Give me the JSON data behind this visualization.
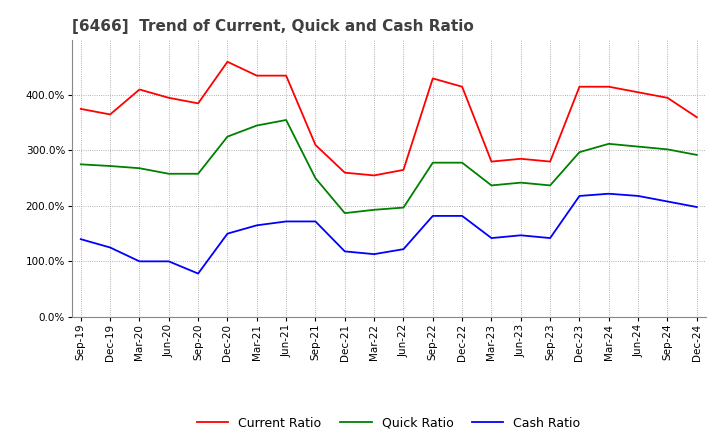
{
  "title": "[6466]  Trend of Current, Quick and Cash Ratio",
  "x_labels": [
    "Sep-19",
    "Dec-19",
    "Mar-20",
    "Jun-20",
    "Sep-20",
    "Dec-20",
    "Mar-21",
    "Jun-21",
    "Sep-21",
    "Dec-21",
    "Mar-22",
    "Jun-22",
    "Sep-22",
    "Dec-22",
    "Mar-23",
    "Jun-23",
    "Sep-23",
    "Dec-23",
    "Mar-24",
    "Jun-24",
    "Sep-24",
    "Dec-24"
  ],
  "current_ratio": [
    3.75,
    3.65,
    4.1,
    3.95,
    3.85,
    4.6,
    4.35,
    4.35,
    3.1,
    2.6,
    2.55,
    2.65,
    4.3,
    4.15,
    2.8,
    2.85,
    2.8,
    4.15,
    4.15,
    4.05,
    3.95,
    3.6
  ],
  "quick_ratio": [
    2.75,
    2.72,
    2.68,
    2.58,
    2.58,
    3.25,
    3.45,
    3.55,
    2.5,
    1.87,
    1.93,
    1.97,
    2.78,
    2.78,
    2.37,
    2.42,
    2.37,
    2.97,
    3.12,
    3.07,
    3.02,
    2.92
  ],
  "cash_ratio": [
    1.4,
    1.25,
    1.0,
    1.0,
    0.78,
    1.5,
    1.65,
    1.72,
    1.72,
    1.18,
    1.13,
    1.22,
    1.82,
    1.82,
    1.42,
    1.47,
    1.42,
    2.18,
    2.22,
    2.18,
    2.08,
    1.98
  ],
  "current_color": "#FF0000",
  "quick_color": "#008000",
  "cash_color": "#0000FF",
  "ylim": [
    0.0,
    5.0
  ],
  "yticks": [
    0.0,
    1.0,
    2.0,
    3.0,
    4.0
  ],
  "background_color": "#ffffff",
  "grid_color": "#999999",
  "title_fontsize": 11,
  "legend_fontsize": 9,
  "tick_fontsize": 7.5
}
